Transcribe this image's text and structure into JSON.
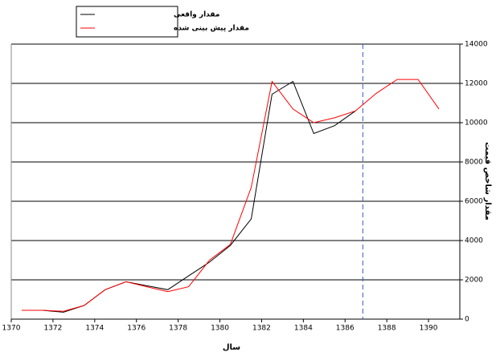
{
  "chart_data": {
    "type": "line",
    "x_label": "سال",
    "y_label": "مقدار شاخص قیمت",
    "x": [
      1370.5,
      1371.5,
      1372.5,
      1373.5,
      1374.5,
      1375.5,
      1376.5,
      1377.5,
      1378.5,
      1379.5,
      1380.5,
      1381.5,
      1382.5,
      1383.5,
      1384.5,
      1385.5,
      1386.5,
      1387.5,
      1388.5,
      1389.5,
      1390.5
    ],
    "series": [
      {
        "name": "مقدار واقعی",
        "color": "#000000",
        "values": [
          450,
          450,
          350,
          700,
          1500,
          1900,
          1700,
          1500,
          2200,
          2900,
          3750,
          5100,
          11450,
          12100,
          9450,
          9850,
          10600,
          null,
          null,
          null,
          null
        ]
      },
      {
        "name": "مقدار پیش بینی شده",
        "color": "#ff0000",
        "values": [
          450,
          450,
          400,
          700,
          1500,
          1900,
          1650,
          1400,
          1650,
          3000,
          3800,
          6700,
          12100,
          10700,
          10000,
          10250,
          10600,
          11500,
          12200,
          12200,
          10700
        ]
      }
    ],
    "xlim": [
      1370,
      1391.5
    ],
    "xticks": [
      1370,
      1372,
      1374,
      1376,
      1378,
      1380,
      1382,
      1384,
      1386,
      1388,
      1390
    ],
    "ylim": [
      0,
      14000
    ],
    "yticks": [
      0,
      2000,
      4000,
      6000,
      8000,
      10000,
      12000,
      14000
    ],
    "grid": true,
    "vline": {
      "x": 1386.85,
      "color": "#3355cc"
    }
  }
}
